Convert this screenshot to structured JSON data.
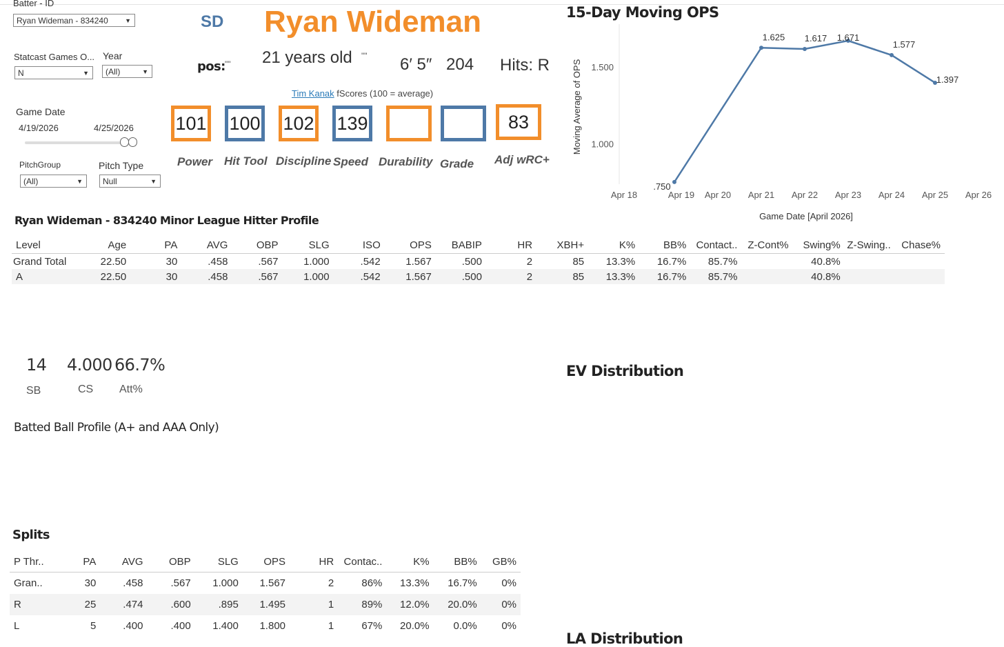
{
  "filters": {
    "batter_label": "Batter - ID",
    "batter_value": "Ryan Wideman - 834240",
    "statcast_label": "Statcast Games O...",
    "statcast_value": "N",
    "year_label": "Year",
    "year_value": "(All)",
    "game_date_label": "Game Date",
    "date_start": "4/19/2026",
    "date_end": "4/25/2026",
    "pitchgroup_label": "PitchGroup",
    "pitchgroup_value": "(All)",
    "pitchtype_label": "Pitch Type",
    "pitchtype_value": "Null"
  },
  "player": {
    "team": "SD",
    "name": "Ryan Wideman",
    "pos_label": "pos:",
    "pos_value": "\"\"",
    "age": "21 years old",
    "age_suffix": "\"\"",
    "height": "6′ 5″",
    "weight": "204",
    "hits": "Hits:  R"
  },
  "fscores": {
    "author": "Tim Kanak",
    "caption": "fScores (100 = average)",
    "items": [
      {
        "value": "101",
        "label": "Power"
      },
      {
        "value": "100",
        "label": "Hit Tool"
      },
      {
        "value": "102",
        "label": "Discipline"
      },
      {
        "value": "139",
        "label": "Speed"
      },
      {
        "value": "",
        "label": "Durability"
      },
      {
        "value": "",
        "label": "Grade"
      },
      {
        "value": "83",
        "label": "Adj wRC+"
      }
    ]
  },
  "chart_data": {
    "type": "line",
    "title": "15-Day Moving OPS",
    "xlabel": "Game Date [April 2026]",
    "ylabel": "Moving Average of OPS",
    "x_ticks": [
      "Apr 18",
      "Apr 19",
      "Apr 20",
      "Apr 21",
      "Apr 22",
      "Apr 23",
      "Apr 24",
      "Apr 25",
      "Apr 26"
    ],
    "x": [
      19,
      21,
      22,
      23,
      24,
      25
    ],
    "y": [
      0.75,
      1.625,
      1.617,
      1.671,
      1.577,
      1.397
    ],
    "labels": [
      ".750",
      "1.625",
      "1.617",
      "1.671",
      "1.577",
      "1.397"
    ],
    "y_ticks": [
      "1.000",
      "1.500"
    ],
    "ylim": [
      0.7,
      1.77
    ],
    "xlim": [
      18,
      26
    ],
    "color": "#4e79a7"
  },
  "profile": {
    "title": "Ryan Wideman - 834240 Minor League Hitter Profile",
    "columns": [
      "Level",
      "Age",
      "PA",
      "AVG",
      "OBP",
      "SLG",
      "ISO",
      "OPS",
      "BABIP",
      "HR",
      "XBH+",
      "K%",
      "BB%",
      "Contact..",
      "Z-Cont%",
      "Swing%",
      "Z-Swing..",
      "Chase%"
    ],
    "rows": [
      [
        "Grand Total",
        "22.50",
        "30",
        ".458",
        ".567",
        "1.000",
        ".542",
        "1.567",
        ".500",
        "2",
        "85",
        "13.3%",
        "16.7%",
        "85.7%",
        "",
        "40.8%",
        "",
        ""
      ],
      [
        "A",
        "22.50",
        "30",
        ".458",
        ".567",
        "1.000",
        ".542",
        "1.567",
        ".500",
        "2",
        "85",
        "13.3%",
        "16.7%",
        "85.7%",
        "",
        "40.8%",
        "",
        ""
      ]
    ]
  },
  "steals": {
    "sb_value": "14",
    "sb_label": "SB",
    "cs_value": "4.000",
    "cs_label": "CS",
    "att_value": "66.7%",
    "att_label": "Att%"
  },
  "batted_ball_title": "Batted Ball Profile (A+ and AAA Only)",
  "ev_title": "EV Distribution",
  "la_title": "LA Distribution",
  "splits": {
    "title": "Splits",
    "columns": [
      "P Thr..",
      "PA",
      "AVG",
      "OBP",
      "SLG",
      "OPS",
      "HR",
      "Contac..",
      "K%",
      "BB%",
      "GB%"
    ],
    "rows": [
      [
        "Gran..",
        "30",
        ".458",
        ".567",
        "1.000",
        "1.567",
        "2",
        "86%",
        "13.3%",
        "16.7%",
        "0%"
      ],
      [
        "R",
        "25",
        ".474",
        ".600",
        ".895",
        "1.495",
        "1",
        "89%",
        "12.0%",
        "20.0%",
        "0%"
      ],
      [
        "L",
        "5",
        ".400",
        ".400",
        "1.400",
        "1.800",
        "1",
        "67%",
        "20.0%",
        "0.0%",
        "0%"
      ]
    ]
  }
}
